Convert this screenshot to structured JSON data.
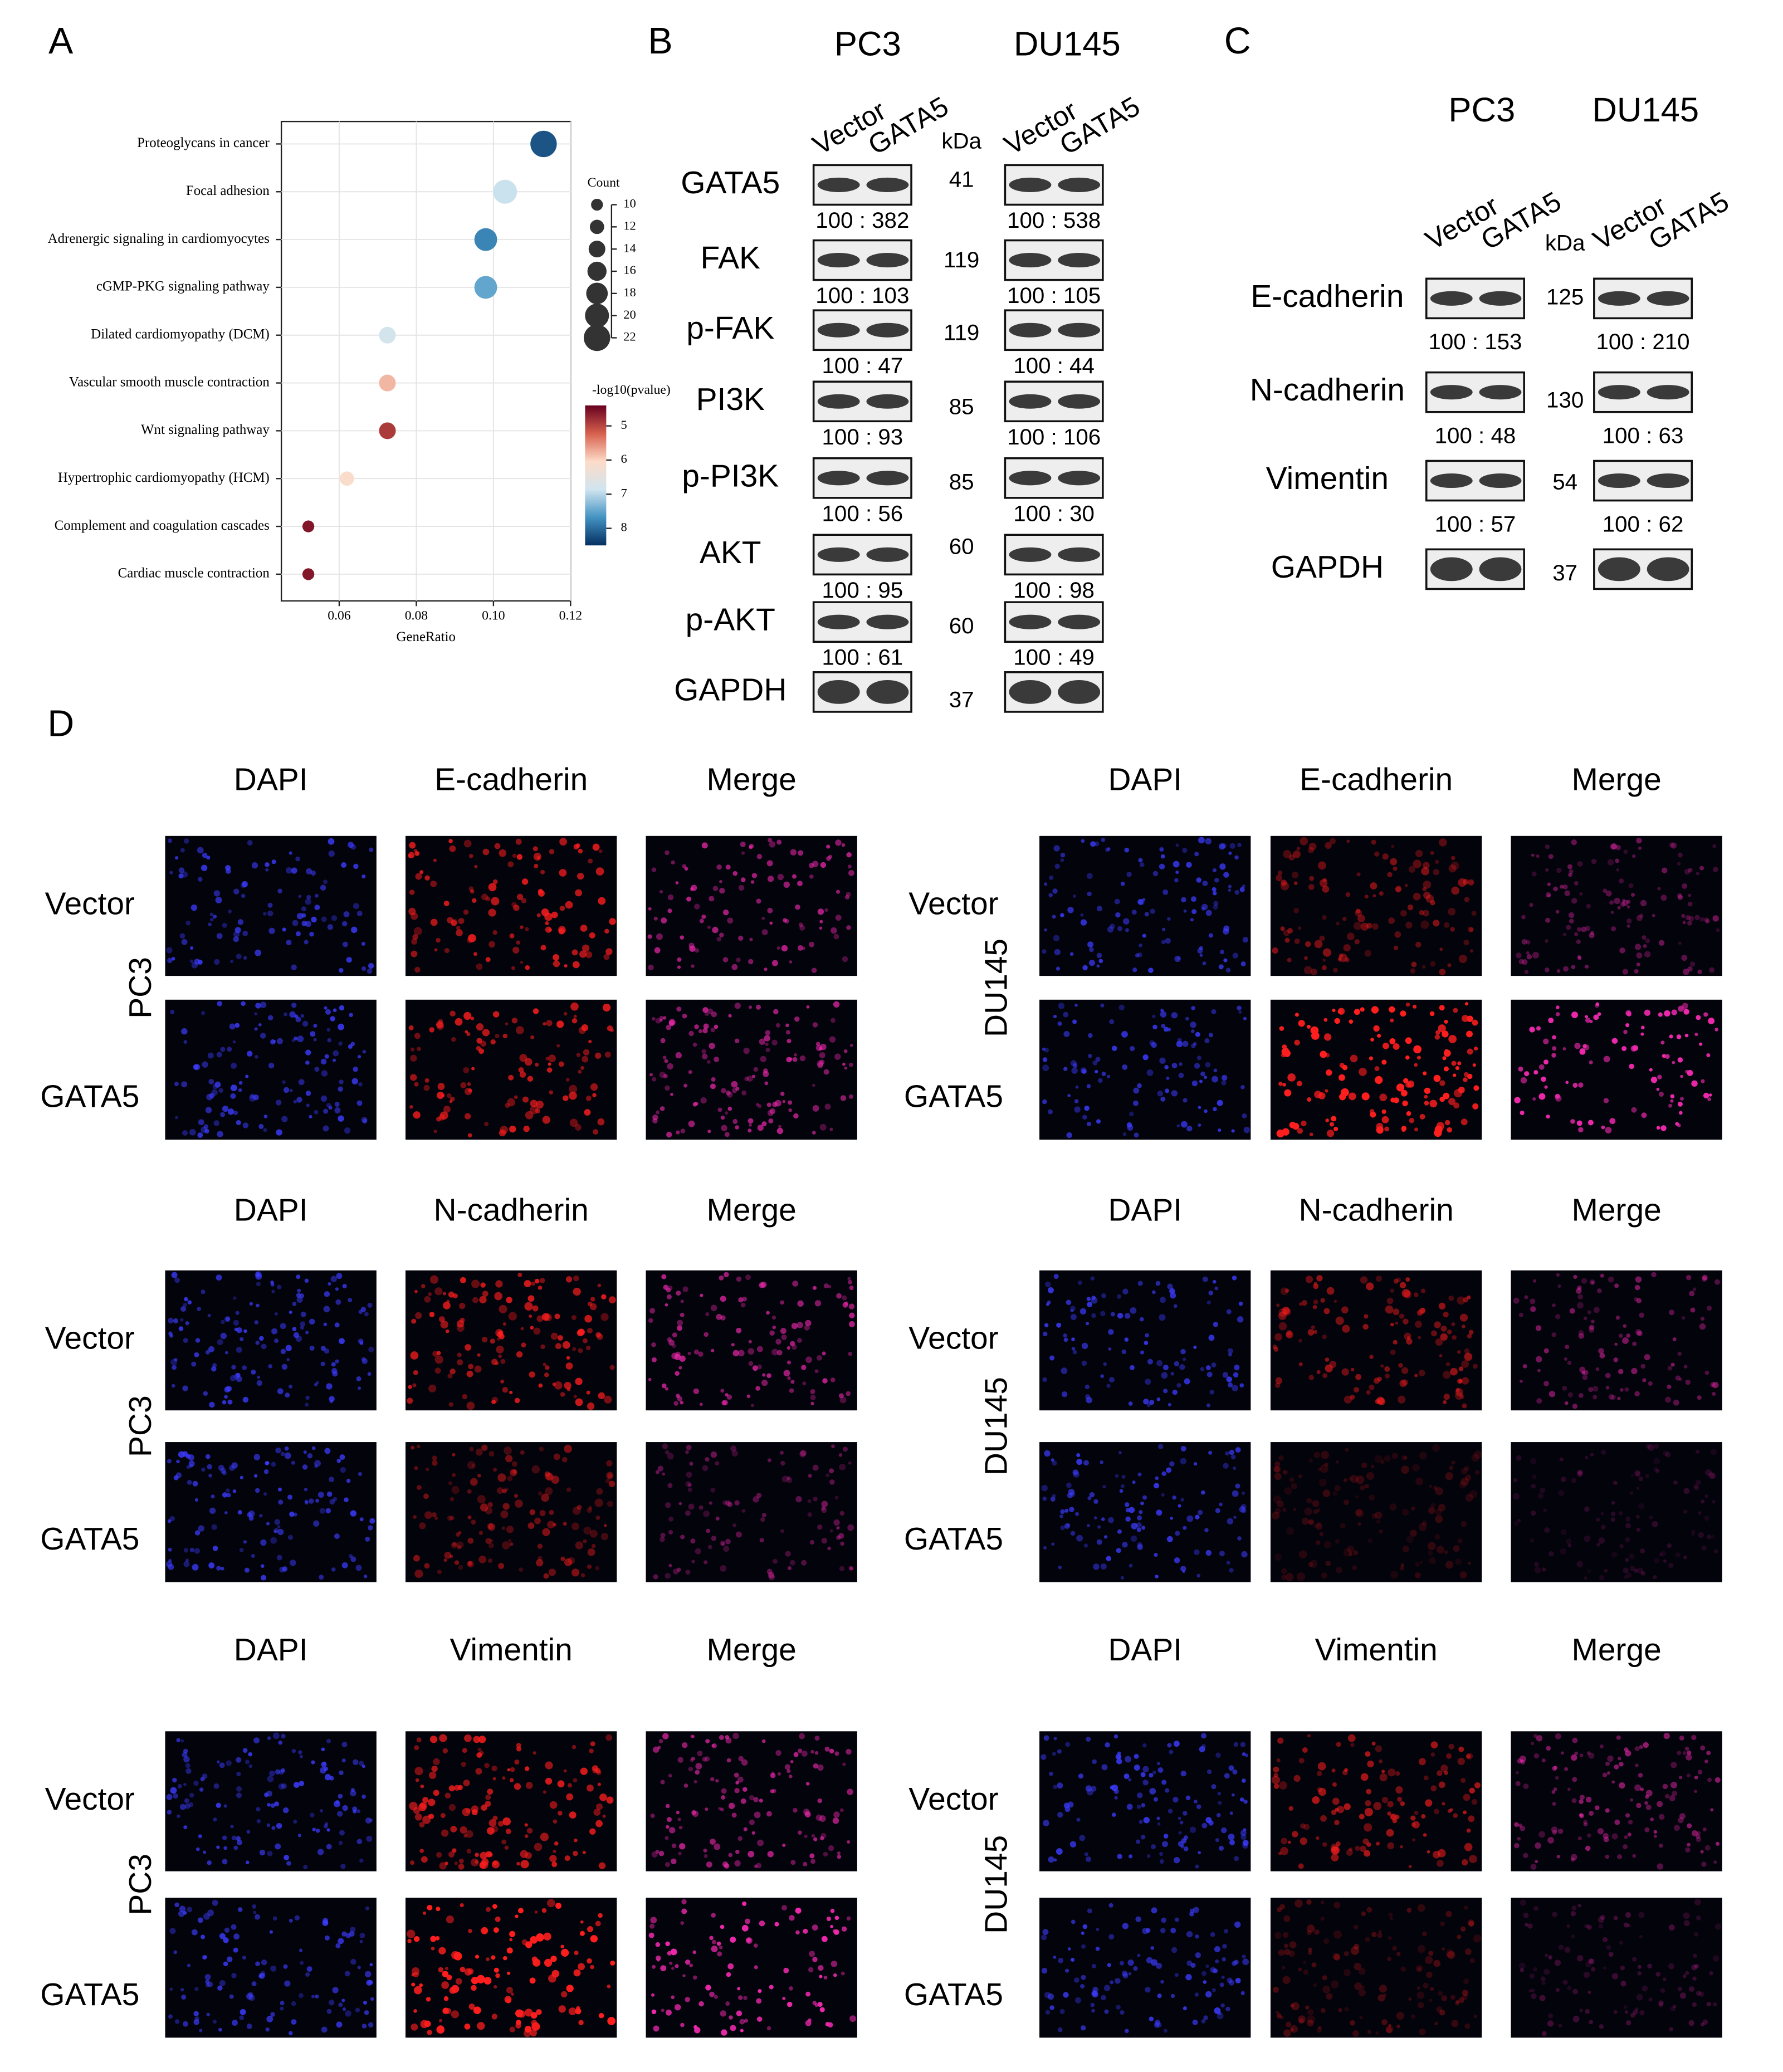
{
  "panel_labels": [
    "A",
    "B",
    "C",
    "D"
  ],
  "chart_data": {
    "type": "scatter",
    "x_label": "GeneRatio",
    "categories": [
      "Proteoglycans in cancer",
      "Focal adhesion",
      "Adrenergic signaling in cardiomyocytes",
      "cGMP-PKG signaling pathway",
      "Dilated cardiomyopathy (DCM)",
      "Vascular smooth muscle contraction",
      "Wnt signaling pathway",
      "Hypertrophic cardiomyopathy (HCM)",
      "Complement and coagulation cascades",
      "Cardiac muscle contraction"
    ],
    "values": [
      0.113,
      0.103,
      0.098,
      0.098,
      0.0725,
      0.0725,
      0.0725,
      0.062,
      0.052,
      0.052
    ],
    "count": [
      22,
      20,
      19,
      19,
      14,
      14,
      14,
      12,
      10,
      10
    ],
    "neg_log10_pvalue": [
      8.2,
      6.9,
      7.8,
      7.5,
      6.8,
      5.8,
      4.9,
      6.1,
      4.6,
      4.6
    ],
    "xlim": [
      0.045,
      0.12
    ],
    "xticks": [
      0.06,
      0.08,
      {
        "value": 0.1,
        "label": "0.10"
      },
      0.12
    ],
    "grid": true,
    "size_legend": {
      "title": "Count",
      "ticks": [
        10,
        12,
        14,
        16,
        18,
        20,
        22
      ]
    },
    "color_legend": {
      "title": "-log10(pvalue)",
      "ticks": [
        5,
        6,
        7,
        8
      ],
      "clim": [
        4.4,
        8.5
      ],
      "colormap": [
        "#67001f",
        "#d6604d",
        "#fddbc7",
        "#d1e5f0",
        "#4393c3",
        "#053061"
      ]
    }
  },
  "panel_b": {
    "cell_lines": [
      "PC3",
      "DU145"
    ],
    "lanes": [
      [
        "Vector",
        "GATA5"
      ],
      [
        "Vector",
        "GATA5"
      ]
    ],
    "unit": "kDa",
    "rows": [
      {
        "protein": "GATA5",
        "kda": 41,
        "ratios": [
          "100 : 382",
          "100 : 538"
        ]
      },
      {
        "protein": "FAK",
        "kda": 119,
        "ratios": [
          "100 : 103",
          "100 : 105"
        ]
      },
      {
        "protein": "p-FAK",
        "kda": 119,
        "ratios": [
          "100 : 47",
          "100 : 44"
        ]
      },
      {
        "protein": "PI3K",
        "kda": 85,
        "ratios": [
          "100 : 93",
          "100 : 106"
        ]
      },
      {
        "protein": "p-PI3K",
        "kda": 85,
        "ratios": [
          "100 : 56",
          "100 : 30"
        ]
      },
      {
        "protein": "AKT",
        "kda": 60,
        "ratios": [
          "100 : 95",
          "100 : 98"
        ]
      },
      {
        "protein": "p-AKT",
        "kda": 60,
        "ratios": [
          "100 : 61",
          "100 : 49"
        ]
      },
      {
        "protein": "GAPDH",
        "kda": 37
      }
    ]
  },
  "panel_c": {
    "cell_lines": [
      "PC3",
      "DU145"
    ],
    "lanes": [
      [
        "Vector",
        "GATA5"
      ],
      [
        "Vector",
        "GATA5"
      ]
    ],
    "unit": "kDa",
    "rows": [
      {
        "protein": "E-cadherin",
        "kda": 125,
        "ratios": [
          "100 : 153",
          "100 : 210"
        ]
      },
      {
        "protein": "N-cadherin",
        "kda": 130,
        "ratios": [
          "100 : 48",
          "100 : 63"
        ]
      },
      {
        "protein": "Vimentin",
        "kda": 54,
        "ratios": [
          "100 : 57",
          "100 : 62"
        ]
      },
      {
        "protein": "GAPDH",
        "kda": 37
      }
    ]
  },
  "panel_d": {
    "groups": [
      {
        "sides": [
          {
            "cell_line": "PC3",
            "columns": [
              "DAPI",
              "E-cadherin",
              "Merge"
            ],
            "rows": [
              "Vector",
              "GATA5"
            ]
          },
          {
            "cell_line": "DU145",
            "columns": [
              "DAPI",
              "E-cadherin",
              "Merge"
            ],
            "rows": [
              "Vector",
              "GATA5"
            ]
          }
        ]
      },
      {
        "sides": [
          {
            "cell_line": "PC3",
            "columns": [
              "DAPI",
              "N-cadherin",
              "Merge"
            ],
            "rows": [
              "Vector",
              "GATA5"
            ]
          },
          {
            "cell_line": "DU145",
            "columns": [
              "DAPI",
              "N-cadherin",
              "Merge"
            ],
            "rows": [
              "Vector",
              "GATA5"
            ]
          }
        ]
      },
      {
        "sides": [
          {
            "cell_line": "PC3",
            "columns": [
              "DAPI",
              "Vimentin",
              "Merge"
            ],
            "rows": [
              "Vector",
              "GATA5"
            ]
          },
          {
            "cell_line": "DU145",
            "columns": [
              "DAPI",
              "Vimentin",
              "Merge"
            ],
            "rows": [
              "Vector",
              "GATA5"
            ]
          }
        ]
      }
    ]
  }
}
